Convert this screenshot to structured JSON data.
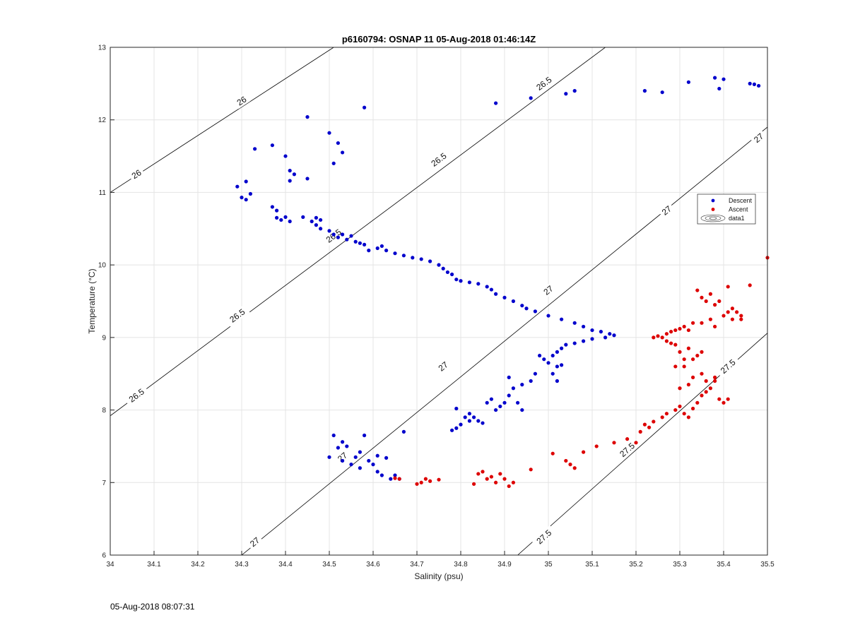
{
  "timestamp": "05-Aug-2018 08:07:31",
  "colors": {
    "descent": "#0000cc",
    "ascent": "#dd0000",
    "contour": "#000000",
    "grid": "#e4e4e4"
  },
  "chart_data": {
    "type": "scatter",
    "title": "p6160794: OSNAP 11 05-Aug-2018 01:46:14Z",
    "xlabel": "Salinity (psu)",
    "ylabel": "Temperature (°C)",
    "xlim": [
      34,
      35.5
    ],
    "ylim": [
      6,
      13
    ],
    "xticks": [
      "34",
      "34.1",
      "34.2",
      "34.3",
      "34.4",
      "34.5",
      "34.6",
      "34.7",
      "34.8",
      "34.9",
      "35",
      "35.1",
      "35.2",
      "35.3",
      "35.4",
      "35.5"
    ],
    "yticks": [
      "6",
      "7",
      "8",
      "9",
      "10",
      "11",
      "12",
      "13"
    ],
    "grid": true,
    "legend": {
      "position": "right",
      "entries": [
        "Descent",
        "Ascent",
        "data1"
      ]
    },
    "contours": [
      {
        "level": "26",
        "points": [
          [
            34,
            11
          ],
          [
            34.51,
            13
          ]
        ],
        "labels": [
          [
            34.06,
            11.25
          ],
          [
            34.3,
            12.26
          ]
        ]
      },
      {
        "level": "26.5",
        "points": [
          [
            34,
            7.92
          ],
          [
            35.13,
            13
          ]
        ],
        "labels": [
          [
            34.06,
            8.2
          ],
          [
            34.29,
            9.3
          ],
          [
            34.51,
            10.4
          ],
          [
            34.75,
            11.45
          ],
          [
            34.99,
            12.5
          ]
        ]
      },
      {
        "level": "27",
        "points": [
          [
            34.3,
            6
          ],
          [
            35.5,
            11.9
          ]
        ],
        "labels": [
          [
            34.33,
            6.18
          ],
          [
            34.53,
            7.35
          ],
          [
            34.76,
            8.6
          ],
          [
            35.0,
            9.65
          ],
          [
            35.27,
            10.75
          ],
          [
            35.48,
            11.75
          ]
        ]
      },
      {
        "level": "27.5",
        "points": [
          [
            34.93,
            6
          ],
          [
            35.5,
            9.06
          ]
        ],
        "labels": [
          [
            34.99,
            6.25
          ],
          [
            35.18,
            7.45
          ],
          [
            35.41,
            8.6
          ]
        ]
      }
    ],
    "series": [
      {
        "name": "Descent",
        "points": [
          [
            34.29,
            11.08
          ],
          [
            34.3,
            10.93
          ],
          [
            34.31,
            10.9
          ],
          [
            34.31,
            11.15
          ],
          [
            34.32,
            10.98
          ],
          [
            34.33,
            11.6
          ],
          [
            34.37,
            11.65
          ],
          [
            34.37,
            10.8
          ],
          [
            34.38,
            10.75
          ],
          [
            34.38,
            10.65
          ],
          [
            34.39,
            10.62
          ],
          [
            34.4,
            10.66
          ],
          [
            34.41,
            10.6
          ],
          [
            34.4,
            11.5
          ],
          [
            34.41,
            11.3
          ],
          [
            34.42,
            11.25
          ],
          [
            34.41,
            11.16
          ],
          [
            34.44,
            10.66
          ],
          [
            34.45,
            11.19
          ],
          [
            34.45,
            12.04
          ],
          [
            34.46,
            10.6
          ],
          [
            34.47,
            10.65
          ],
          [
            34.47,
            10.55
          ],
          [
            34.48,
            10.5
          ],
          [
            34.48,
            10.62
          ],
          [
            34.5,
            10.47
          ],
          [
            34.51,
            10.42
          ],
          [
            34.52,
            10.38
          ],
          [
            34.53,
            10.42
          ],
          [
            34.54,
            10.35
          ],
          [
            34.55,
            10.4
          ],
          [
            34.56,
            10.32
          ],
          [
            34.57,
            10.3
          ],
          [
            34.58,
            10.28
          ],
          [
            34.59,
            10.2
          ],
          [
            34.5,
            11.82
          ],
          [
            34.51,
            11.4
          ],
          [
            34.52,
            11.68
          ],
          [
            34.53,
            11.55
          ],
          [
            34.58,
            12.17
          ],
          [
            34.61,
            10.23
          ],
          [
            34.62,
            10.26
          ],
          [
            34.63,
            10.2
          ],
          [
            34.65,
            10.16
          ],
          [
            34.67,
            10.13
          ],
          [
            34.69,
            10.1
          ],
          [
            34.71,
            10.08
          ],
          [
            34.73,
            10.05
          ],
          [
            34.75,
            10.0
          ],
          [
            34.76,
            9.95
          ],
          [
            34.77,
            9.9
          ],
          [
            34.78,
            9.87
          ],
          [
            34.79,
            9.8
          ],
          [
            34.8,
            9.78
          ],
          [
            34.82,
            9.76
          ],
          [
            34.84,
            9.74
          ],
          [
            34.86,
            9.7
          ],
          [
            34.87,
            9.66
          ],
          [
            34.88,
            9.6
          ],
          [
            34.9,
            9.55
          ],
          [
            34.92,
            9.5
          ],
          [
            34.94,
            9.44
          ],
          [
            34.95,
            9.4
          ],
          [
            34.97,
            9.36
          ],
          [
            35.0,
            9.3
          ],
          [
            35.03,
            9.25
          ],
          [
            35.06,
            9.2
          ],
          [
            35.08,
            9.15
          ],
          [
            35.1,
            9.1
          ],
          [
            35.12,
            9.08
          ],
          [
            35.14,
            9.05
          ],
          [
            35.15,
            9.03
          ],
          [
            35.13,
            9.0
          ],
          [
            35.1,
            8.98
          ],
          [
            35.08,
            8.95
          ],
          [
            35.06,
            8.92
          ],
          [
            35.04,
            8.9
          ],
          [
            35.03,
            8.85
          ],
          [
            35.02,
            8.8
          ],
          [
            35.01,
            8.75
          ],
          [
            34.99,
            8.7
          ],
          [
            34.98,
            8.75
          ],
          [
            35.0,
            8.65
          ],
          [
            35.02,
            8.6
          ],
          [
            35.03,
            8.62
          ],
          [
            35.01,
            8.5
          ],
          [
            35.02,
            8.4
          ],
          [
            34.97,
            8.5
          ],
          [
            34.96,
            8.4
          ],
          [
            34.94,
            8.35
          ],
          [
            34.92,
            8.3
          ],
          [
            34.91,
            8.2
          ],
          [
            34.9,
            8.1
          ],
          [
            34.89,
            8.05
          ],
          [
            34.88,
            8.0
          ],
          [
            34.93,
            8.1
          ],
          [
            34.94,
            8.0
          ],
          [
            34.91,
            8.45
          ],
          [
            34.87,
            8.15
          ],
          [
            34.86,
            8.1
          ],
          [
            34.84,
            7.85
          ],
          [
            34.82,
            7.85
          ],
          [
            34.81,
            7.9
          ],
          [
            34.8,
            7.8
          ],
          [
            34.79,
            7.75
          ],
          [
            34.78,
            7.72
          ],
          [
            34.79,
            8.02
          ],
          [
            34.82,
            7.95
          ],
          [
            34.83,
            7.9
          ],
          [
            34.85,
            7.82
          ],
          [
            34.88,
            12.23
          ],
          [
            34.96,
            12.3
          ],
          [
            35.04,
            12.36
          ],
          [
            35.06,
            12.4
          ],
          [
            35.22,
            12.4
          ],
          [
            35.26,
            12.38
          ],
          [
            35.32,
            12.52
          ],
          [
            35.38,
            12.58
          ],
          [
            35.39,
            12.43
          ],
          [
            35.4,
            12.56
          ],
          [
            35.46,
            12.5
          ],
          [
            35.47,
            12.49
          ],
          [
            35.48,
            12.47
          ],
          [
            34.5,
            7.35
          ],
          [
            34.51,
            7.65
          ],
          [
            34.52,
            7.48
          ],
          [
            34.53,
            7.3
          ],
          [
            34.54,
            7.5
          ],
          [
            34.53,
            7.56
          ],
          [
            34.55,
            7.25
          ],
          [
            34.56,
            7.35
          ],
          [
            34.57,
            7.42
          ],
          [
            34.58,
            7.65
          ],
          [
            34.57,
            7.2
          ],
          [
            34.59,
            7.3
          ],
          [
            34.6,
            7.25
          ],
          [
            34.61,
            7.15
          ],
          [
            34.61,
            7.37
          ],
          [
            34.62,
            7.1
          ],
          [
            34.63,
            7.34
          ],
          [
            34.64,
            7.05
          ],
          [
            34.65,
            7.1
          ],
          [
            34.66,
            7.05
          ],
          [
            34.67,
            7.7
          ]
        ]
      },
      {
        "name": "Ascent",
        "points": [
          [
            34.65,
            7.06
          ],
          [
            34.66,
            7.05
          ],
          [
            34.7,
            6.98
          ],
          [
            34.71,
            7.0
          ],
          [
            34.72,
            7.05
          ],
          [
            34.73,
            7.02
          ],
          [
            34.75,
            7.04
          ],
          [
            34.83,
            6.98
          ],
          [
            34.84,
            7.12
          ],
          [
            34.85,
            7.15
          ],
          [
            34.86,
            7.05
          ],
          [
            34.87,
            7.08
          ],
          [
            34.88,
            7.0
          ],
          [
            34.89,
            7.12
          ],
          [
            34.9,
            7.05
          ],
          [
            34.91,
            6.95
          ],
          [
            34.92,
            7.0
          ],
          [
            34.96,
            7.18
          ],
          [
            35.01,
            7.4
          ],
          [
            35.04,
            7.3
          ],
          [
            35.05,
            7.25
          ],
          [
            35.06,
            7.2
          ],
          [
            35.08,
            7.42
          ],
          [
            35.11,
            7.5
          ],
          [
            35.15,
            7.55
          ],
          [
            35.18,
            7.6
          ],
          [
            35.2,
            7.55
          ],
          [
            35.21,
            7.7
          ],
          [
            35.22,
            7.8
          ],
          [
            35.23,
            7.76
          ],
          [
            35.24,
            7.84
          ],
          [
            35.26,
            7.9
          ],
          [
            35.27,
            7.95
          ],
          [
            35.29,
            8.0
          ],
          [
            35.3,
            8.05
          ],
          [
            35.31,
            7.95
          ],
          [
            35.32,
            7.9
          ],
          [
            35.33,
            8.02
          ],
          [
            35.34,
            8.1
          ],
          [
            35.35,
            8.2
          ],
          [
            35.36,
            8.25
          ],
          [
            35.37,
            8.3
          ],
          [
            35.38,
            8.4
          ],
          [
            35.39,
            8.15
          ],
          [
            35.4,
            8.1
          ],
          [
            35.41,
            8.15
          ],
          [
            35.38,
            8.45
          ],
          [
            35.36,
            8.4
          ],
          [
            35.35,
            8.5
          ],
          [
            35.33,
            8.45
          ],
          [
            35.32,
            8.35
          ],
          [
            35.3,
            8.3
          ],
          [
            35.29,
            8.6
          ],
          [
            35.31,
            8.6
          ],
          [
            35.33,
            8.7
          ],
          [
            35.35,
            8.8
          ],
          [
            35.34,
            8.75
          ],
          [
            35.32,
            8.85
          ],
          [
            35.3,
            8.8
          ],
          [
            35.31,
            8.7
          ],
          [
            35.29,
            8.9
          ],
          [
            35.28,
            8.92
          ],
          [
            35.27,
            8.95
          ],
          [
            35.26,
            9.0
          ],
          [
            35.25,
            9.02
          ],
          [
            35.24,
            9.0
          ],
          [
            35.27,
            9.05
          ],
          [
            35.28,
            9.08
          ],
          [
            35.29,
            9.1
          ],
          [
            35.3,
            9.12
          ],
          [
            35.31,
            9.15
          ],
          [
            35.32,
            9.1
          ],
          [
            35.33,
            9.2
          ],
          [
            35.35,
            9.2
          ],
          [
            35.37,
            9.25
          ],
          [
            35.38,
            9.15
          ],
          [
            35.4,
            9.3
          ],
          [
            35.41,
            9.35
          ],
          [
            35.42,
            9.4
          ],
          [
            35.43,
            9.35
          ],
          [
            35.44,
            9.3
          ],
          [
            35.42,
            9.25
          ],
          [
            35.38,
            9.45
          ],
          [
            35.36,
            9.5
          ],
          [
            35.35,
            9.55
          ],
          [
            35.34,
            9.65
          ],
          [
            35.37,
            9.6
          ],
          [
            35.39,
            9.5
          ],
          [
            35.41,
            9.7
          ],
          [
            35.46,
            9.72
          ],
          [
            35.5,
            10.1
          ],
          [
            35.44,
            9.25
          ]
        ]
      }
    ]
  }
}
